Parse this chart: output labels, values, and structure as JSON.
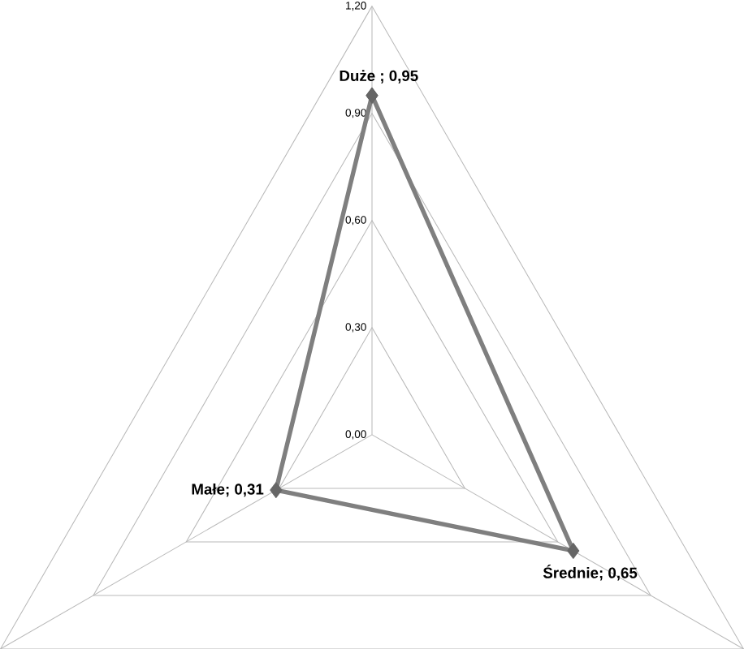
{
  "chart_data": {
    "type": "radar",
    "categories": [
      "Duże",
      "Średnie",
      "Małe"
    ],
    "series": [
      {
        "color": "#7f7f7f",
        "values": [
          0.95,
          0.65,
          0.31
        ],
        "value_labels": [
          " ; 0,95",
          "; 0,65",
          "; 0,31"
        ]
      }
    ],
    "ylim": [
      0,
      1.2
    ],
    "yticks": [
      {
        "value": 0,
        "label": "0,00"
      },
      {
        "value": 0.3,
        "label": "0,30"
      },
      {
        "value": 0.6,
        "label": "0,60"
      },
      {
        "value": 0.9,
        "label": "0,90"
      },
      {
        "value": 1.2,
        "label": "1,20"
      }
    ],
    "grid": true,
    "marker": "diamond"
  }
}
